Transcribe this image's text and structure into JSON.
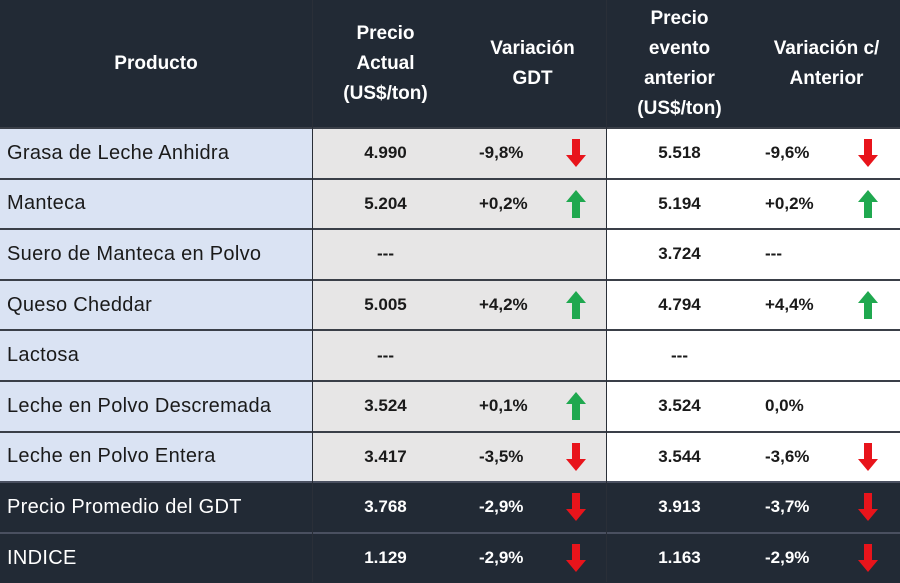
{
  "header": {
    "producto": "Producto",
    "precio_actual": [
      "Precio",
      "Actual",
      "(US$/ton)"
    ],
    "variacion_gdt": [
      "Variación",
      "GDT"
    ],
    "precio_anterior": [
      "Precio",
      "evento",
      "anterior",
      "(US$/ton)"
    ],
    "variacion_anterior": [
      "Variación c/",
      "Anterior"
    ]
  },
  "rows": [
    {
      "producto": "Grasa de Leche Anhidra",
      "precio": "4.990",
      "var_gdt": "-9,8%",
      "arrow_gdt": "down",
      "precio_ant": "5.518",
      "var_ant": "-9,6%",
      "arrow_ant": "down"
    },
    {
      "producto": "Manteca",
      "precio": "5.204",
      "var_gdt": "+0,2%",
      "arrow_gdt": "up",
      "precio_ant": "5.194",
      "var_ant": "+0,2%",
      "arrow_ant": "up"
    },
    {
      "producto": "Suero de Manteca en Polvo",
      "precio": "---",
      "var_gdt": "",
      "arrow_gdt": "",
      "precio_ant": "3.724",
      "var_ant": "---",
      "arrow_ant": ""
    },
    {
      "producto": "Queso Cheddar",
      "precio": "5.005",
      "var_gdt": "+4,2%",
      "arrow_gdt": "up",
      "precio_ant": "4.794",
      "var_ant": "+4,4%",
      "arrow_ant": "up"
    },
    {
      "producto": "Lactosa",
      "precio": "---",
      "var_gdt": "",
      "arrow_gdt": "",
      "precio_ant": "---",
      "var_ant": "",
      "arrow_ant": ""
    },
    {
      "producto": "Leche en Polvo Descremada",
      "precio": "3.524",
      "var_gdt": "+0,1%",
      "arrow_gdt": "up",
      "precio_ant": "3.524",
      "var_ant": "0,0%",
      "arrow_ant": ""
    },
    {
      "producto": "Leche en Polvo Entera",
      "precio": "3.417",
      "var_gdt": "-3,5%",
      "arrow_gdt": "down",
      "precio_ant": "3.544",
      "var_ant": "-3,6%",
      "arrow_ant": "down"
    }
  ],
  "summary": [
    {
      "producto": "Precio Promedio del GDT",
      "precio": "3.768",
      "var_gdt": "-2,9%",
      "arrow_gdt": "down",
      "precio_ant": "3.913",
      "var_ant": "-3,7%",
      "arrow_ant": "down"
    },
    {
      "producto": "INDICE",
      "precio": "1.129",
      "var_gdt": "-2,9%",
      "arrow_gdt": "down",
      "precio_ant": "1.163",
      "var_ant": "-2,9%",
      "arrow_ant": "down"
    }
  ],
  "colors": {
    "header_bg": "#222a35",
    "product_col_bg": "#dae3f3",
    "price_col_bg": "#e7e6e6",
    "prev_col_bg": "#ffffff",
    "arrow_up": "#1fa84f",
    "arrow_down": "#e8141b"
  },
  "icons": {
    "up": "arrow-up-icon",
    "down": "arrow-down-icon"
  }
}
